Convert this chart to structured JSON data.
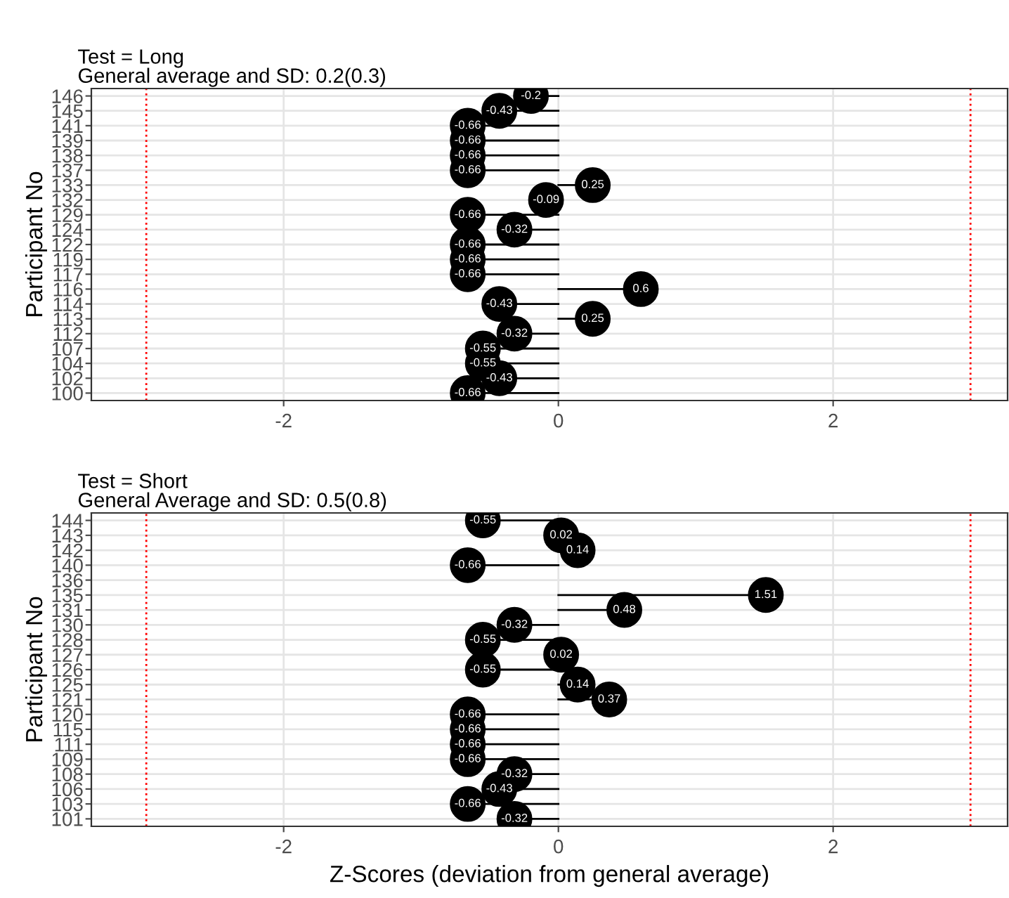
{
  "chart_data": [
    {
      "type": "lollipop",
      "orientation": "horizontal",
      "title": "Test = Long",
      "subtitle": "General average and SD: 0.2(0.3)",
      "ylabel": "Participant No",
      "categories": [
        "146",
        "145",
        "141",
        "139",
        "138",
        "137",
        "133",
        "132",
        "129",
        "124",
        "122",
        "119",
        "117",
        "116",
        "114",
        "113",
        "112",
        "107",
        "104",
        "102",
        "100"
      ],
      "values": [
        -0.2,
        -0.43,
        -0.66,
        -0.66,
        -0.66,
        -0.66,
        0.25,
        -0.09,
        -0.66,
        -0.32,
        -0.66,
        -0.66,
        -0.66,
        0.6,
        -0.43,
        0.25,
        -0.32,
        -0.55,
        -0.55,
        -0.43,
        -0.66
      ],
      "color": "#000000",
      "xlim": [
        -3.4,
        3.27
      ],
      "xticks": [
        -2,
        0,
        2
      ],
      "grid": true,
      "data_labels": true,
      "ref_lines": [
        {
          "axis": "x",
          "value": -3,
          "color": "#ff0000",
          "line_style": "dotted"
        },
        {
          "axis": "x",
          "value": 3,
          "color": "#ff0000",
          "line_style": "dotted"
        }
      ]
    },
    {
      "type": "lollipop",
      "orientation": "horizontal",
      "title": "Test = Short",
      "subtitle": "General Average and SD: 0.5(0.8)",
      "ylabel": "Participant No",
      "xlabel": "Z-Scores (deviation from general average)",
      "categories": [
        "144",
        "143",
        "142",
        "140",
        "136",
        "135",
        "131",
        "130",
        "128",
        "127",
        "126",
        "125",
        "121",
        "120",
        "115",
        "111",
        "109",
        "108",
        "106",
        "103",
        "101"
      ],
      "values": [
        -0.55,
        0.02,
        0.14,
        -0.66,
        null,
        1.51,
        0.48,
        -0.32,
        -0.55,
        0.02,
        -0.55,
        0.14,
        0.37,
        -0.66,
        -0.66,
        -0.66,
        -0.66,
        -0.32,
        -0.43,
        -0.66,
        -0.32
      ],
      "color": "#000000",
      "xlim": [
        -3.4,
        3.27
      ],
      "xticks": [
        -2,
        0,
        2
      ],
      "grid": true,
      "data_labels": true,
      "ref_lines": [
        {
          "axis": "x",
          "value": -3,
          "color": "#ff0000",
          "line_style": "dotted"
        },
        {
          "axis": "x",
          "value": 3,
          "color": "#ff0000",
          "line_style": "dotted"
        }
      ]
    }
  ]
}
